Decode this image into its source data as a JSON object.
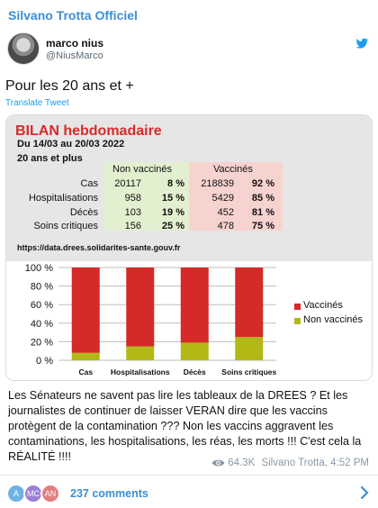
{
  "channel": {
    "name": "Silvano Trotta Officiel"
  },
  "tweet": {
    "author_name": "marco nius",
    "author_handle": "@NiusMarco",
    "text": "Pour les 20 ans et +",
    "translate_label": "Translate Tweet",
    "platform_icon": "twitter-bird-icon"
  },
  "image": {
    "title": "BILAN hebdomadaire",
    "period": "Du 14/03 au 20/03 2022",
    "age_group": "20 ans et plus",
    "col_non_vax": "Non vaccinés",
    "col_vax": "Vaccinés",
    "rows": [
      {
        "label": "Cas",
        "nv": "20117",
        "nv_pct": "8 %",
        "v": "218839",
        "v_pct": "92 %"
      },
      {
        "label": "Hospitalisations",
        "nv": "958",
        "nv_pct": "15 %",
        "v": "5429",
        "v_pct": "85 %"
      },
      {
        "label": "Décès",
        "nv": "103",
        "nv_pct": "19 %",
        "v": "452",
        "v_pct": "81 %"
      },
      {
        "label": "Soins critiques",
        "nv": "156",
        "nv_pct": "25 %",
        "v": "478",
        "v_pct": "75 %"
      }
    ],
    "source": "https://data.drees.solidarites-sante.gouv.fr",
    "colors": {
      "vax": "#d42a28",
      "non_vax": "#b2b916",
      "nv_bg": "#e3f0cf",
      "v_bg": "#f7d3d0",
      "title": "#d62b2b"
    }
  },
  "chart_data": {
    "type": "bar",
    "stacked": true,
    "categories": [
      "Cas",
      "Hospitalisations",
      "Décès",
      "Soins critiques"
    ],
    "series": [
      {
        "name": "Vaccinés",
        "values": [
          92,
          85,
          81,
          75
        ],
        "color": "#d42a28"
      },
      {
        "name": "Non vaccinés",
        "values": [
          8,
          15,
          19,
          25
        ],
        "color": "#b2b916"
      }
    ],
    "y_ticks": [
      "0 %",
      "20 %",
      "40 %",
      "60 %",
      "80 %",
      "100 %"
    ],
    "ylim": [
      0,
      100
    ],
    "grid": true,
    "legend": "right"
  },
  "message": {
    "text": "Les Sénateurs ne savent pas lire les tableaux de la DREES ? Et les journalistes de continuer de laisser VERAN dire que les vaccins protègent de la contamination ??? Non les vaccins aggravent les contaminations, les hospitalisations, les réas, les morts !!! C'est cela la RÉALITÉ !!!!",
    "views": "64.3K",
    "author": "Silvano Trotta,",
    "time": "4:52 PM"
  },
  "footer": {
    "avatars": [
      {
        "initial": "A",
        "color": "#6fb3e4"
      },
      {
        "initial": "MC",
        "color": "#9c7fd6"
      },
      {
        "initial": "AN",
        "color": "#e17f7f"
      }
    ],
    "comments_label": "237 comments"
  }
}
